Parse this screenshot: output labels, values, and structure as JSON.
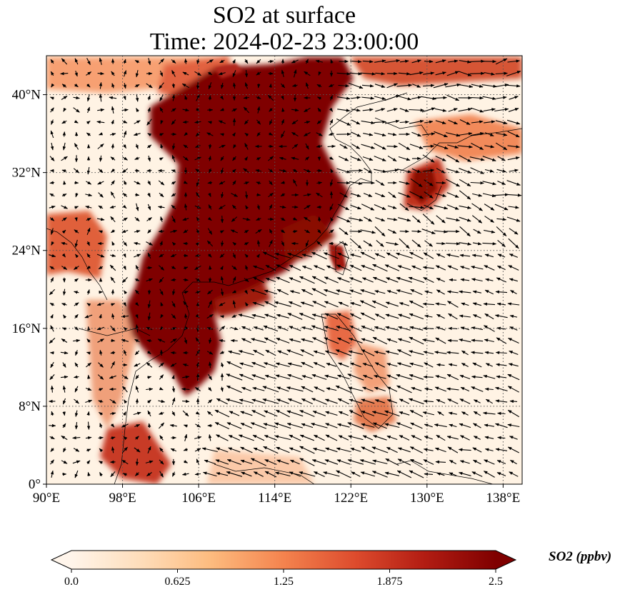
{
  "title": {
    "line1": "SO2 at surface",
    "line2": "Time: 2024-02-23 23:00:00"
  },
  "map": {
    "lon_range": [
      90,
      140
    ],
    "lat_range": [
      0,
      44
    ],
    "lon_ticks": [
      90,
      98,
      106,
      114,
      122,
      130,
      138
    ],
    "lat_ticks": [
      0,
      8,
      16,
      24,
      32,
      40
    ],
    "lon_tick_labels": [
      "90°E",
      "98°E",
      "106°E",
      "114°E",
      "122°E",
      "130°E",
      "138°E"
    ],
    "lat_tick_labels": [
      "0°",
      "8°N",
      "16°N",
      "24°N",
      "32°N",
      "40°N"
    ],
    "gridlines": "dotted",
    "field_variable": "SO2",
    "overlay": "wind vectors (quiver)"
  },
  "colorbar": {
    "label": "SO2 (ppbv)",
    "min": 0.0,
    "max": 2.5,
    "ticks": [
      "0.0",
      "0.625",
      "1.25",
      "1.875",
      "2.5"
    ],
    "extend": "both",
    "colormap": [
      "#fff5eb",
      "#fdd9b5",
      "#fdab67",
      "#f4743e",
      "#d84a2a",
      "#b01e16",
      "#7f0000"
    ]
  },
  "colors": {
    "land_base": "#fff3e4",
    "high": "#7f0000",
    "arrow": "#000000",
    "coast": "#000000"
  }
}
